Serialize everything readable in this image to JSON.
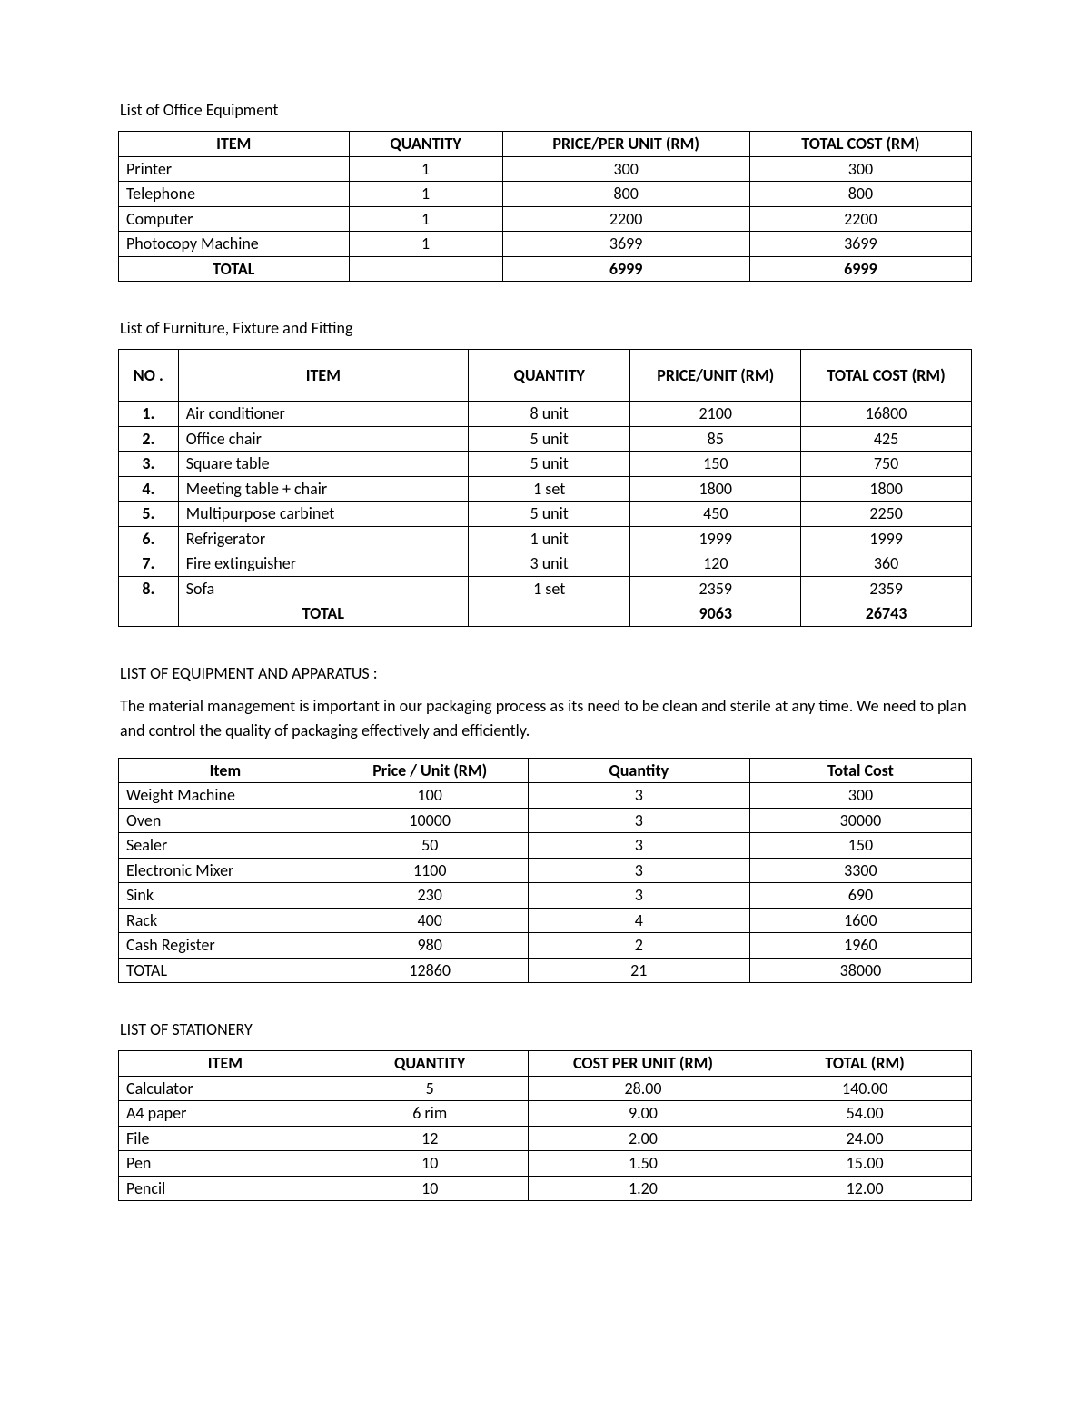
{
  "colors": {
    "text": "#000000",
    "background": "#ffffff",
    "border": "#000000"
  },
  "typography": {
    "font_family": "Calibri",
    "base_fontsize_pt": 12,
    "header_weight": 700
  },
  "section1": {
    "title": "List of Office Equipment",
    "columns": [
      "ITEM",
      "QUANTITY",
      "PRICE/PER UNIT (RM)",
      "TOTAL COST (RM)"
    ],
    "rows": [
      {
        "item": "Printer",
        "qty": "1",
        "price": "300",
        "total": "300"
      },
      {
        "item": "Telephone",
        "qty": "1",
        "price": "800",
        "total": "800"
      },
      {
        "item": "Computer",
        "qty": "1",
        "price": "2200",
        "total": "2200"
      },
      {
        "item": "Photocopy Machine",
        "qty": "1",
        "price": "3699",
        "total": "3699"
      }
    ],
    "total_row": {
      "label": "TOTAL",
      "qty": "",
      "price": "6999",
      "total": "6999"
    }
  },
  "section2": {
    "title": "List of Furniture, Fixture and Fitting",
    "columns": [
      "NO .",
      "ITEM",
      "QUANTITY",
      "PRICE/UNIT (RM)",
      "TOTAL COST (RM)"
    ],
    "rows": [
      {
        "no": "1.",
        "item": "Air conditioner",
        "qty": "8 unit",
        "price": "2100",
        "total": "16800"
      },
      {
        "no": "2.",
        "item": "Office chair",
        "qty": "5 unit",
        "price": "85",
        "total": "425"
      },
      {
        "no": "3.",
        "item": "Square table",
        "qty": "5 unit",
        "price": "150",
        "total": "750"
      },
      {
        "no": "4.",
        "item": "Meeting table + chair",
        "qty": "1 set",
        "price": "1800",
        "total": "1800"
      },
      {
        "no": "5.",
        "item": "Multipurpose carbinet",
        "qty": "5 unit",
        "price": "450",
        "total": "2250"
      },
      {
        "no": "6.",
        "item": "Refrigerator",
        "qty": "1 unit",
        "price": "1999",
        "total": "1999"
      },
      {
        "no": "7.",
        "item": "Fire extinguisher",
        "qty": "3 unit",
        "price": "120",
        "total": "360"
      },
      {
        "no": "8.",
        "item": "Sofa",
        "qty": "1 set",
        "price": "2359",
        "total": "2359"
      }
    ],
    "total_row": {
      "no": "",
      "label": "TOTAL",
      "qty": "",
      "price": "9063",
      "total": "26743"
    }
  },
  "section3": {
    "title": "LIST OF EQUIPMENT AND APPARATUS :",
    "paragraph": "The material management is important in our packaging process as its need to be clean and sterile at any time. We need to plan and control the quality of packaging effectively and efficiently.",
    "columns": [
      "Item",
      "Price / Unit (RM)",
      "Quantity",
      "Total Cost"
    ],
    "rows": [
      {
        "item": "Weight Machine",
        "price": "100",
        "qty": "3",
        "total": "300"
      },
      {
        "item": "Oven",
        "price": "10000",
        "qty": "3",
        "total": "30000"
      },
      {
        "item": "Sealer",
        "price": "50",
        "qty": "3",
        "total": "150"
      },
      {
        "item": "Electronic Mixer",
        "price": "1100",
        "qty": "3",
        "total": "3300"
      },
      {
        "item": "Sink",
        "price": "230",
        "qty": "3",
        "total": "690"
      },
      {
        "item": "Rack",
        "price": "400",
        "qty": "4",
        "total": "1600"
      },
      {
        "item": "Cash Register",
        "price": "980",
        "qty": "2",
        "total": "1960"
      }
    ],
    "total_row": {
      "label": "TOTAL",
      "price": "12860",
      "qty": "21",
      "total": "38000"
    }
  },
  "section4": {
    "title": "LIST OF STATIONERY",
    "columns": [
      "ITEM",
      "QUANTITY",
      "COST PER UNIT (RM)",
      "TOTAL (RM)"
    ],
    "rows": [
      {
        "item": "Calculator",
        "qty": "5",
        "price": "28.00",
        "total": "140.00"
      },
      {
        "item": "A4 paper",
        "qty": "6 rim",
        "price": "9.00",
        "total": "54.00"
      },
      {
        "item": "File",
        "qty": "12",
        "price": "2.00",
        "total": "24.00"
      },
      {
        "item": "Pen",
        "qty": "10",
        "price": "1.50",
        "total": "15.00"
      },
      {
        "item": "Pencil",
        "qty": "10",
        "price": "1.20",
        "total": "12.00"
      }
    ]
  }
}
